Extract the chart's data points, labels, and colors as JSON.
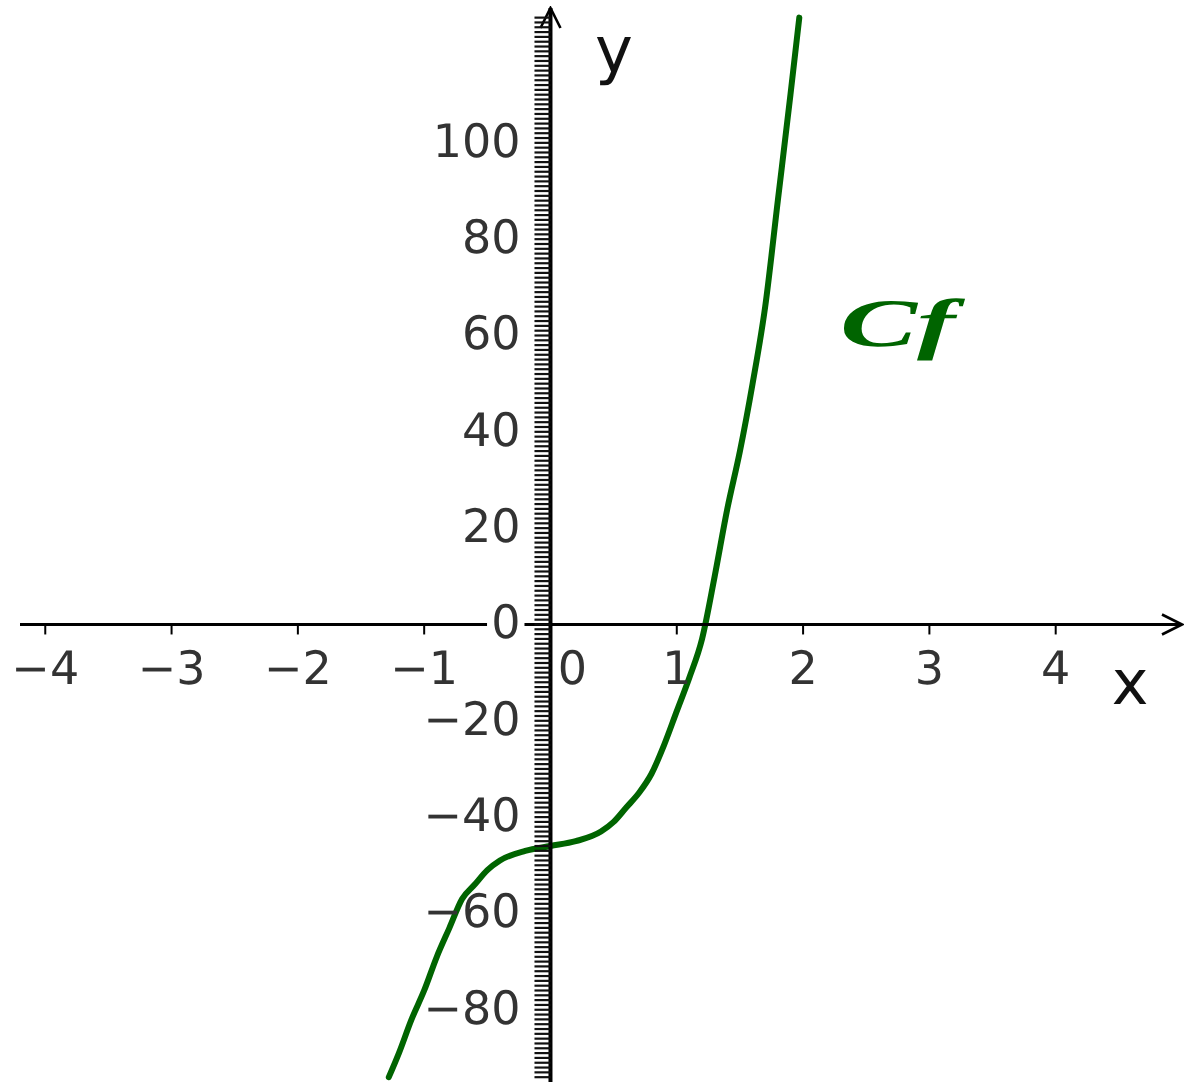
{
  "chart_data": {
    "type": "line",
    "xlabel": "x",
    "ylabel": "y",
    "xlim": [
      -4.2,
      5
    ],
    "ylim": [
      -95,
      128
    ],
    "xticks": [
      -4,
      -3,
      -2,
      -1,
      0,
      1,
      2,
      3,
      4
    ],
    "yticks": [
      {
        "value": -94,
        "label": null
      },
      {
        "value": -93,
        "label": null
      },
      {
        "value": -92,
        "label": null
      },
      {
        "value": -91,
        "label": null
      },
      {
        "value": -90,
        "label": null
      },
      {
        "value": -89,
        "label": null
      },
      {
        "value": -88,
        "label": null
      },
      {
        "value": -87,
        "label": null
      },
      {
        "value": -86,
        "label": null
      },
      {
        "value": -85,
        "label": null
      },
      {
        "value": -84,
        "label": null
      },
      {
        "value": -83,
        "label": null
      },
      {
        "value": -82,
        "label": null
      },
      {
        "value": -81,
        "label": null
      },
      -80,
      {
        "value": -79,
        "label": null
      },
      {
        "value": -78,
        "label": null
      },
      {
        "value": -77,
        "label": null
      },
      {
        "value": -76,
        "label": null
      },
      {
        "value": -75,
        "label": null
      },
      {
        "value": -74,
        "label": null
      },
      {
        "value": -73,
        "label": null
      },
      {
        "value": -72,
        "label": null
      },
      {
        "value": -71,
        "label": null
      },
      {
        "value": -70,
        "label": null
      },
      {
        "value": -69,
        "label": null
      },
      {
        "value": -68,
        "label": null
      },
      {
        "value": -67,
        "label": null
      },
      {
        "value": -66,
        "label": null
      },
      {
        "value": -65,
        "label": null
      },
      {
        "value": -64,
        "label": null
      },
      {
        "value": -63,
        "label": null
      },
      {
        "value": -62,
        "label": null
      },
      {
        "value": -61,
        "label": null
      },
      -60,
      {
        "value": -59,
        "label": null
      },
      {
        "value": -58,
        "label": null
      },
      {
        "value": -57,
        "label": null
      },
      {
        "value": -56,
        "label": null
      },
      {
        "value": -55,
        "label": null
      },
      {
        "value": -54,
        "label": null
      },
      {
        "value": -53,
        "label": null
      },
      {
        "value": -52,
        "label": null
      },
      {
        "value": -51,
        "label": null
      },
      {
        "value": -50,
        "label": null
      },
      {
        "value": -49,
        "label": null
      },
      {
        "value": -48,
        "label": null
      },
      {
        "value": -47,
        "label": null
      },
      {
        "value": -46,
        "label": null
      },
      {
        "value": -45,
        "label": null
      },
      {
        "value": -44,
        "label": null
      },
      {
        "value": -43,
        "label": null
      },
      {
        "value": -42,
        "label": null
      },
      {
        "value": -41,
        "label": null
      },
      -40,
      {
        "value": -39,
        "label": null
      },
      {
        "value": -38,
        "label": null
      },
      {
        "value": -37,
        "label": null
      },
      {
        "value": -36,
        "label": null
      },
      {
        "value": -35,
        "label": null
      },
      {
        "value": -34,
        "label": null
      },
      {
        "value": -33,
        "label": null
      },
      {
        "value": -32,
        "label": null
      },
      {
        "value": -31,
        "label": null
      },
      {
        "value": -30,
        "label": null
      },
      {
        "value": -29,
        "label": null
      },
      {
        "value": -28,
        "label": null
      },
      {
        "value": -27,
        "label": null
      },
      {
        "value": -26,
        "label": null
      },
      {
        "value": -25,
        "label": null
      },
      {
        "value": -24,
        "label": null
      },
      {
        "value": -23,
        "label": null
      },
      {
        "value": -22,
        "label": null
      },
      {
        "value": -21,
        "label": null
      },
      -20,
      {
        "value": -19,
        "label": null
      },
      {
        "value": -18,
        "label": null
      },
      {
        "value": -17,
        "label": null
      },
      {
        "value": -16,
        "label": null
      },
      {
        "value": -15,
        "label": null
      },
      {
        "value": -14,
        "label": null
      },
      {
        "value": -13,
        "label": null
      },
      {
        "value": -12,
        "label": null
      },
      {
        "value": -11,
        "label": null
      },
      {
        "value": -10,
        "label": null
      },
      {
        "value": -9,
        "label": null
      },
      {
        "value": -8,
        "label": null
      },
      {
        "value": -7,
        "label": null
      },
      {
        "value": -6,
        "label": null
      },
      {
        "value": -5,
        "label": null
      },
      {
        "value": -4,
        "label": null
      },
      {
        "value": -3,
        "label": null
      },
      {
        "value": -2,
        "label": null
      },
      {
        "value": -1,
        "label": null
      },
      0,
      {
        "value": 1,
        "label": null
      },
      {
        "value": 2,
        "label": null
      },
      {
        "value": 3,
        "label": null
      },
      {
        "value": 4,
        "label": null
      },
      {
        "value": 5,
        "label": null
      },
      {
        "value": 6,
        "label": null
      },
      {
        "value": 7,
        "label": null
      },
      {
        "value": 8,
        "label": null
      },
      {
        "value": 9,
        "label": null
      },
      {
        "value": 10,
        "label": null
      },
      {
        "value": 11,
        "label": null
      },
      {
        "value": 12,
        "label": null
      },
      {
        "value": 13,
        "label": null
      },
      {
        "value": 14,
        "label": null
      },
      {
        "value": 15,
        "label": null
      },
      {
        "value": 16,
        "label": null
      },
      {
        "value": 17,
        "label": null
      },
      {
        "value": 18,
        "label": null
      },
      {
        "value": 19,
        "label": null
      },
      20,
      {
        "value": 21,
        "label": null
      },
      {
        "value": 22,
        "label": null
      },
      {
        "value": 23,
        "label": null
      },
      {
        "value": 24,
        "label": null
      },
      {
        "value": 25,
        "label": null
      },
      {
        "value": 26,
        "label": null
      },
      {
        "value": 27,
        "label": null
      },
      {
        "value": 28,
        "label": null
      },
      {
        "value": 29,
        "label": null
      },
      {
        "value": 30,
        "label": null
      },
      {
        "value": 31,
        "label": null
      },
      {
        "value": 32,
        "label": null
      },
      {
        "value": 33,
        "label": null
      },
      {
        "value": 34,
        "label": null
      },
      {
        "value": 35,
        "label": null
      },
      {
        "value": 36,
        "label": null
      },
      {
        "value": 37,
        "label": null
      },
      {
        "value": 38,
        "label": null
      },
      {
        "value": 39,
        "label": null
      },
      40,
      {
        "value": 41,
        "label": null
      },
      {
        "value": 42,
        "label": null
      },
      {
        "value": 43,
        "label": null
      },
      {
        "value": 44,
        "label": null
      },
      {
        "value": 45,
        "label": null
      },
      {
        "value": 46,
        "label": null
      },
      {
        "value": 47,
        "label": null
      },
      {
        "value": 48,
        "label": null
      },
      {
        "value": 49,
        "label": null
      },
      {
        "value": 50,
        "label": null
      },
      {
        "value": 51,
        "label": null
      },
      {
        "value": 52,
        "label": null
      },
      {
        "value": 53,
        "label": null
      },
      {
        "value": 54,
        "label": null
      },
      {
        "value": 55,
        "label": null
      },
      {
        "value": 56,
        "label": null
      },
      {
        "value": 57,
        "label": null
      },
      {
        "value": 58,
        "label": null
      },
      {
        "value": 59,
        "label": null
      },
      60,
      {
        "value": 61,
        "label": null
      },
      {
        "value": 62,
        "label": null
      },
      {
        "value": 63,
        "label": null
      },
      {
        "value": 64,
        "label": null
      },
      {
        "value": 65,
        "label": null
      },
      {
        "value": 66,
        "label": null
      },
      {
        "value": 67,
        "label": null
      },
      {
        "value": 68,
        "label": null
      },
      {
        "value": 69,
        "label": null
      },
      {
        "value": 70,
        "label": null
      },
      {
        "value": 71,
        "label": null
      },
      {
        "value": 72,
        "label": null
      },
      {
        "value": 73,
        "label": null
      },
      {
        "value": 74,
        "label": null
      },
      {
        "value": 75,
        "label": null
      },
      {
        "value": 76,
        "label": null
      },
      {
        "value": 77,
        "label": null
      },
      {
        "value": 78,
        "label": null
      },
      {
        "value": 79,
        "label": null
      },
      80,
      {
        "value": 81,
        "label": null
      },
      {
        "value": 82,
        "label": null
      },
      {
        "value": 83,
        "label": null
      },
      {
        "value": 84,
        "label": null
      },
      {
        "value": 85,
        "label": null
      },
      {
        "value": 86,
        "label": null
      },
      {
        "value": 87,
        "label": null
      },
      {
        "value": 88,
        "label": null
      },
      {
        "value": 89,
        "label": null
      },
      {
        "value": 90,
        "label": null
      },
      {
        "value": 91,
        "label": null
      },
      {
        "value": 92,
        "label": null
      },
      {
        "value": 93,
        "label": null
      },
      {
        "value": 94,
        "label": null
      },
      {
        "value": 95,
        "label": null
      },
      {
        "value": 96,
        "label": null
      },
      {
        "value": 97,
        "label": null
      },
      {
        "value": 98,
        "label": null
      },
      {
        "value": 99,
        "label": null
      },
      100,
      {
        "value": 101,
        "label": null
      },
      {
        "value": 102,
        "label": null
      },
      {
        "value": 103,
        "label": null
      },
      {
        "value": 104,
        "label": null
      },
      {
        "value": 105,
        "label": null
      },
      {
        "value": 106,
        "label": null
      },
      {
        "value": 107,
        "label": null
      },
      {
        "value": 108,
        "label": null
      },
      {
        "value": 109,
        "label": null
      },
      {
        "value": 110,
        "label": null
      },
      {
        "value": 111,
        "label": null
      },
      {
        "value": 112,
        "label": null
      },
      {
        "value": 113,
        "label": null
      },
      {
        "value": 114,
        "label": null
      },
      {
        "value": 115,
        "label": null
      },
      {
        "value": 116,
        "label": null
      },
      {
        "value": 117,
        "label": null
      },
      {
        "value": 118,
        "label": null
      },
      {
        "value": 119,
        "label": null
      },
      {
        "value": 120,
        "label": null
      },
      {
        "value": 121,
        "label": null
      },
      {
        "value": 122,
        "label": null
      },
      {
        "value": 123,
        "label": null
      },
      {
        "value": 124,
        "label": null
      },
      {
        "value": 125,
        "label": null
      },
      {
        "value": 126,
        "label": null
      }
    ],
    "x": [
      -1.28,
      -1.2,
      -1.1,
      -1,
      -0.9,
      -0.8,
      -0.7,
      -0.6,
      -0.5,
      -0.4,
      -0.2,
      0,
      0.2,
      0.4,
      0.5,
      0.6,
      0.7,
      0.8,
      0.9,
      1,
      1.1,
      1.2,
      1.3,
      1.4,
      1.5,
      1.6,
      1.7,
      1.8,
      1.9,
      1.97
    ],
    "series": [
      {
        "name": "Cf",
        "color": "#006400",
        "values": [
          -94,
          -89,
          -82,
          -76,
          -69,
          -63,
          -57,
          -54,
          -51,
          -49,
          -47,
          -46,
          -45,
          -43,
          -41,
          -38,
          -35,
          -31,
          -25,
          -18,
          -11,
          -3,
          10,
          24,
          36,
          50,
          66,
          88,
          110,
          126
        ]
      }
    ]
  }
}
